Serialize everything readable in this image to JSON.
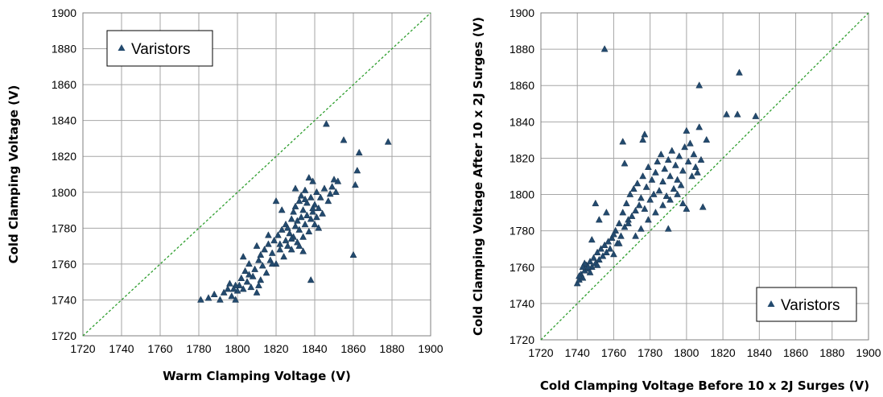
{
  "chart_data": [
    {
      "type": "scatter",
      "xlabel": "Warm Clamping Voltage (V)",
      "ylabel": "Cold Clamping Voltage (V)",
      "xlim": [
        1720,
        1900
      ],
      "ylim": [
        1720,
        1900
      ],
      "xticks": [
        "1720",
        "1740",
        "1760",
        "1780",
        "1800",
        "1820",
        "1840",
        "1860",
        "1880",
        "1900"
      ],
      "yticks": [
        "1720",
        "1740",
        "1760",
        "1780",
        "1800",
        "1820",
        "1840",
        "1860",
        "1880",
        "1900"
      ],
      "grid": true,
      "legend": {
        "label": "Varistors",
        "placement": "top-left"
      },
      "reference_line": {
        "type": "y=x",
        "style": "dashed",
        "color": "#2e9e2e"
      },
      "marker_color": "#234a6e",
      "series": [
        {
          "name": "Varistors",
          "points": [
            [
              1781,
              1740
            ],
            [
              1785,
              1741
            ],
            [
              1788,
              1743
            ],
            [
              1791,
              1740
            ],
            [
              1793,
              1744
            ],
            [
              1795,
              1746
            ],
            [
              1796,
              1749
            ],
            [
              1797,
              1742
            ],
            [
              1799,
              1740
            ],
            [
              1800,
              1745
            ],
            [
              1801,
              1748
            ],
            [
              1802,
              1752
            ],
            [
              1803,
              1746
            ],
            [
              1804,
              1756
            ],
            [
              1805,
              1750
            ],
            [
              1806,
              1760
            ],
            [
              1807,
              1747
            ],
            [
              1808,
              1753
            ],
            [
              1809,
              1757
            ],
            [
              1810,
              1744
            ],
            [
              1811,
              1762
            ],
            [
              1811,
              1748
            ],
            [
              1812,
              1765
            ],
            [
              1813,
              1759
            ],
            [
              1814,
              1768
            ],
            [
              1815,
              1755
            ],
            [
              1816,
              1771
            ],
            [
              1817,
              1762
            ],
            [
              1818,
              1766
            ],
            [
              1819,
              1773
            ],
            [
              1820,
              1760
            ],
            [
              1821,
              1776
            ],
            [
              1822,
              1768
            ],
            [
              1822,
              1771
            ],
            [
              1823,
              1779
            ],
            [
              1824,
              1764
            ],
            [
              1825,
              1773
            ],
            [
              1825,
              1782
            ],
            [
              1826,
              1770
            ],
            [
              1827,
              1777
            ],
            [
              1828,
              1785
            ],
            [
              1828,
              1768
            ],
            [
              1829,
              1789
            ],
            [
              1829,
              1775
            ],
            [
              1830,
              1781
            ],
            [
              1830,
              1792
            ],
            [
              1831,
              1772
            ],
            [
              1831,
              1784
            ],
            [
              1832,
              1795
            ],
            [
              1832,
              1779
            ],
            [
              1833,
              1786
            ],
            [
              1833,
              1798
            ],
            [
              1834,
              1775
            ],
            [
              1834,
              1790
            ],
            [
              1835,
              1782
            ],
            [
              1835,
              1801
            ],
            [
              1836,
              1787
            ],
            [
              1836,
              1794
            ],
            [
              1837,
              1808
            ],
            [
              1837,
              1778
            ],
            [
              1838,
              1785
            ],
            [
              1838,
              1797
            ],
            [
              1839,
              1789
            ],
            [
              1839,
              1806
            ],
            [
              1840,
              1782
            ],
            [
              1840,
              1793
            ],
            [
              1841,
              1800
            ],
            [
              1841,
              1786
            ],
            [
              1842,
              1791
            ],
            [
              1843,
              1797
            ],
            [
              1844,
              1788
            ],
            [
              1845,
              1802
            ],
            [
              1846,
              1838
            ],
            [
              1847,
              1795
            ],
            [
              1848,
              1799
            ],
            [
              1849,
              1803
            ],
            [
              1850,
              1807
            ],
            [
              1851,
              1800
            ],
            [
              1852,
              1806
            ],
            [
              1855,
              1829
            ],
            [
              1860,
              1765
            ],
            [
              1861,
              1804
            ],
            [
              1862,
              1812
            ],
            [
              1863,
              1822
            ],
            [
              1878,
              1828
            ],
            [
              1838,
              1751
            ],
            [
              1832,
              1770
            ],
            [
              1828,
              1774
            ],
            [
              1818,
              1760
            ],
            [
              1812,
              1751
            ],
            [
              1806,
              1754
            ],
            [
              1799,
              1748
            ],
            [
              1826,
              1780
            ],
            [
              1834,
              1767
            ],
            [
              1823,
              1790
            ],
            [
              1820,
              1795
            ],
            [
              1816,
              1776
            ],
            [
              1810,
              1770
            ],
            [
              1803,
              1764
            ],
            [
              1798,
              1746
            ],
            [
              1830,
              1802
            ],
            [
              1835,
              1796
            ],
            [
              1839,
              1791
            ],
            [
              1842,
              1780
            ]
          ]
        }
      ]
    },
    {
      "type": "scatter",
      "xlabel": "Cold Clamping Voltage Before 10 x 2J Surges (V)",
      "ylabel": "Cold Clamping Voltage After 10 x 2J Surges (V)",
      "xlim": [
        1720,
        1900
      ],
      "ylim": [
        1720,
        1900
      ],
      "xticks": [
        "1720",
        "1740",
        "1760",
        "1780",
        "1800",
        "1820",
        "1840",
        "1860",
        "1880",
        "1900"
      ],
      "yticks": [
        "1720",
        "1740",
        "1760",
        "1780",
        "1800",
        "1820",
        "1840",
        "1860",
        "1880",
        "1900"
      ],
      "grid": true,
      "legend": {
        "label": "Varistors",
        "placement": "bottom-right"
      },
      "reference_line": {
        "type": "y=x",
        "style": "dashed",
        "color": "#2e9e2e"
      },
      "marker_color": "#234a6e",
      "series": [
        {
          "name": "Varistors",
          "points": [
            [
              1740,
              1751
            ],
            [
              1741,
              1753
            ],
            [
              1742,
              1756
            ],
            [
              1743,
              1754
            ],
            [
              1744,
              1758
            ],
            [
              1745,
              1761
            ],
            [
              1746,
              1759
            ],
            [
              1747,
              1763
            ],
            [
              1748,
              1760
            ],
            [
              1749,
              1765
            ],
            [
              1750,
              1762
            ],
            [
              1751,
              1768
            ],
            [
              1752,
              1764
            ],
            [
              1753,
              1770
            ],
            [
              1754,
              1766
            ],
            [
              1755,
              1772
            ],
            [
              1756,
              1768
            ],
            [
              1757,
              1774
            ],
            [
              1758,
              1770
            ],
            [
              1759,
              1776
            ],
            [
              1760,
              1767
            ],
            [
              1761,
              1780
            ],
            [
              1762,
              1773
            ],
            [
              1763,
              1784
            ],
            [
              1764,
              1777
            ],
            [
              1765,
              1790
            ],
            [
              1766,
              1782
            ],
            [
              1767,
              1795
            ],
            [
              1768,
              1786
            ],
            [
              1769,
              1800
            ],
            [
              1770,
              1788
            ],
            [
              1771,
              1803
            ],
            [
              1772,
              1791
            ],
            [
              1773,
              1806
            ],
            [
              1774,
              1794
            ],
            [
              1775,
              1798
            ],
            [
              1776,
              1810
            ],
            [
              1777,
              1792
            ],
            [
              1778,
              1804
            ],
            [
              1779,
              1815
            ],
            [
              1780,
              1797
            ],
            [
              1781,
              1808
            ],
            [
              1782,
              1800
            ],
            [
              1783,
              1812
            ],
            [
              1784,
              1818
            ],
            [
              1785,
              1802
            ],
            [
              1786,
              1822
            ],
            [
              1787,
              1807
            ],
            [
              1788,
              1814
            ],
            [
              1789,
              1799
            ],
            [
              1790,
              1819
            ],
            [
              1791,
              1810
            ],
            [
              1792,
              1824
            ],
            [
              1793,
              1803
            ],
            [
              1794,
              1816
            ],
            [
              1795,
              1808
            ],
            [
              1796,
              1821
            ],
            [
              1797,
              1805
            ],
            [
              1798,
              1813
            ],
            [
              1799,
              1826
            ],
            [
              1800,
              1792
            ],
            [
              1801,
              1818
            ],
            [
              1802,
              1828
            ],
            [
              1803,
              1810
            ],
            [
              1804,
              1822
            ],
            [
              1805,
              1815
            ],
            [
              1806,
              1812
            ],
            [
              1807,
              1837
            ],
            [
              1808,
              1819
            ],
            [
              1809,
              1793
            ],
            [
              1811,
              1830
            ],
            [
              1755,
              1880
            ],
            [
              1807,
              1860
            ],
            [
              1822,
              1844
            ],
            [
              1828,
              1844
            ],
            [
              1829,
              1867
            ],
            [
              1838,
              1843
            ],
            [
              1765,
              1829
            ],
            [
              1766,
              1817
            ],
            [
              1776,
              1830
            ],
            [
              1777,
              1833
            ],
            [
              1790,
              1781
            ],
            [
              1800,
              1835
            ],
            [
              1748,
              1775
            ],
            [
              1750,
              1795
            ],
            [
              1744,
              1762
            ],
            [
              1746,
              1760
            ],
            [
              1752,
              1786
            ],
            [
              1756,
              1790
            ],
            [
              1760,
              1778
            ],
            [
              1763,
              1773
            ],
            [
              1768,
              1784
            ],
            [
              1772,
              1777
            ],
            [
              1775,
              1781
            ],
            [
              1779,
              1786
            ],
            [
              1783,
              1790
            ],
            [
              1787,
              1794
            ],
            [
              1791,
              1797
            ],
            [
              1795,
              1800
            ],
            [
              1798,
              1795
            ],
            [
              1741,
              1755
            ],
            [
              1743,
              1760
            ],
            [
              1747,
              1757
            ],
            [
              1751,
              1761
            ]
          ]
        }
      ]
    }
  ]
}
